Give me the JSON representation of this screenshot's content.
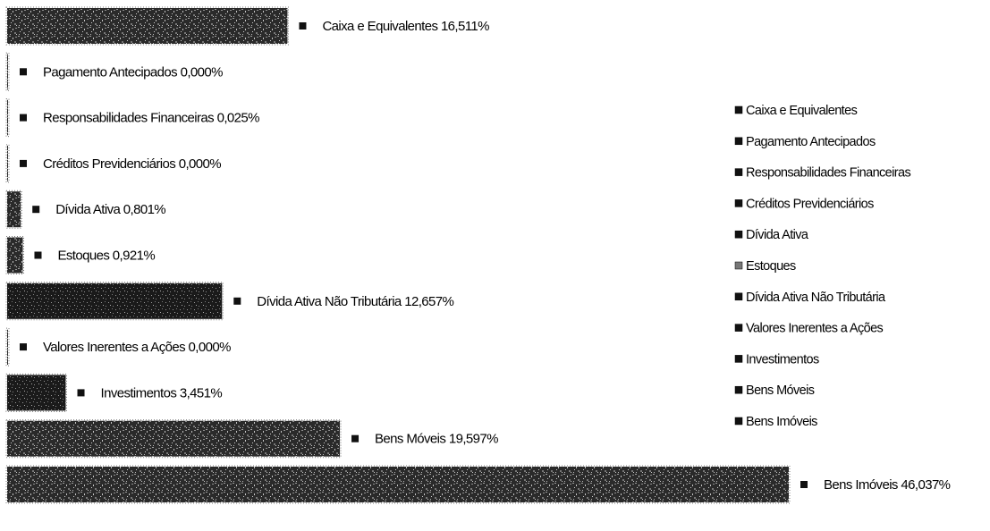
{
  "chart_data": {
    "type": "bar",
    "orientation": "horizontal",
    "value_suffix": "%",
    "categories": [
      "Caixa e Equivalentes",
      "Pagamento Antecipados",
      "Responsabilidades Financeiras",
      "Créditos Previdenciários",
      "Dívida Ativa",
      "Estoques",
      "Dívida Ativa Não Tributária",
      "Valores Inerentes a Ações",
      "Investimentos",
      "Bens Móveis",
      "Bens Imóveis"
    ],
    "values": [
      16.511,
      0.0,
      0.025,
      0.0,
      0.801,
      0.921,
      12.657,
      0.0,
      3.451,
      19.597,
      46.037
    ],
    "value_labels": [
      "16,511%",
      "0,000%",
      "0,025%",
      "0,000%",
      "0,801%",
      "0,921%",
      "12,657%",
      "0,000%",
      "3,451%",
      "19,597%",
      "46,037%"
    ],
    "xlim": [
      0,
      46.037
    ],
    "grid": false,
    "legend_position": "right",
    "legend_entries": [
      "Caixa e Equivalentes",
      "Pagamento Antecipados",
      "Responsabilidades Financeiras",
      "Créditos Previdenciários",
      "Dívida Ativa",
      "Estoques",
      "Dívida Ativa Não Tributária",
      "Valores Inerentes a Ações",
      "Investimentos",
      "Bens Móveis",
      "Bens Imóveis"
    ],
    "colors": {
      "bar_dark": "#111111",
      "bar_mid": "#3a3a3a",
      "bar_light": "#8a8a8a",
      "marker": "#111111"
    }
  }
}
